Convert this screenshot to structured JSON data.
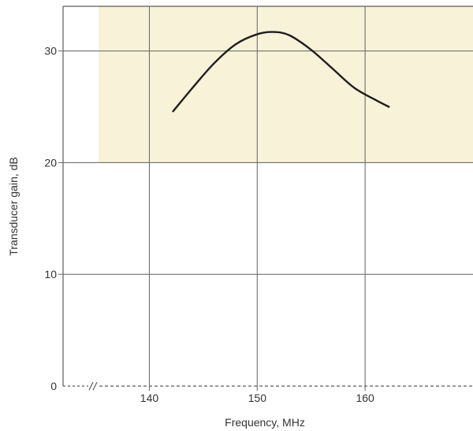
{
  "chart_data": {
    "type": "line",
    "title": "",
    "xlabel": "Frequency, MHz",
    "ylabel": "Transducer gain, dB",
    "xlim": [
      132,
      170
    ],
    "ylim": [
      0,
      34
    ],
    "x_ticks": [
      140,
      150,
      160
    ],
    "x_tick_labels": [
      "140",
      "150",
      "160"
    ],
    "y_ticks": [
      0,
      10,
      20,
      30
    ],
    "y_tick_labels": [
      "0",
      "10",
      "20",
      "30"
    ],
    "x_axis_break": true,
    "grid": true,
    "highlight_band": {
      "y_from": 20,
      "y_to": 34,
      "color": "#f8f2d8"
    },
    "series": [
      {
        "color": "#1e1e1e",
        "x": [
          142.2,
          144,
          146,
          148,
          150,
          151.5,
          153,
          155,
          157,
          159,
          161,
          162.2
        ],
        "y": [
          24.6,
          26.7,
          28.9,
          30.6,
          31.5,
          31.7,
          31.4,
          30.1,
          28.4,
          26.7,
          25.6,
          25.0
        ]
      }
    ]
  }
}
